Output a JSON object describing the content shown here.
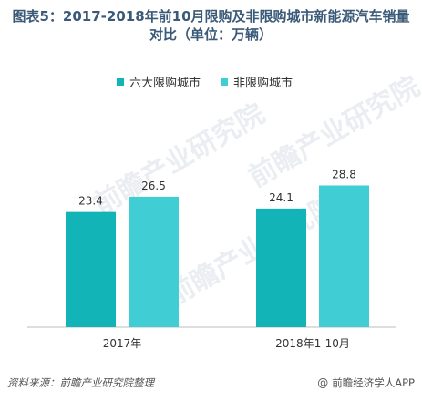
{
  "title": {
    "line1": "图表5：2017-2018年前10月限购及非限购城市新能源汽车销量",
    "line2": "对比（单位：万辆）"
  },
  "colors": {
    "series_1": "#12b4b8",
    "series_2": "#40cdd4",
    "axis": "#bdbdbd",
    "label_text": "#333333"
  },
  "watermarks": [
    "前瞻产业研究院",
    "前瞻产业研究院",
    "前瞻产业研究院"
  ],
  "footer": {
    "source": "资料来源：前瞻产业研究院整理",
    "brand_icon": "@",
    "brand_text": "前瞻经济学人APP"
  },
  "chart_data": {
    "type": "bar",
    "title": "图表5：2017-2018年前10月限购及非限购城市新能源汽车销量对比（单位：万辆）",
    "categories": [
      "2017年",
      "2018年1-10月"
    ],
    "series": [
      {
        "name": "六大限购城市",
        "values": [
          23.4,
          24.1
        ]
      },
      {
        "name": "非限购城市",
        "values": [
          26.5,
          28.8
        ]
      }
    ],
    "ylim": [
      0,
      40
    ],
    "legend_position": "top",
    "grid": false
  }
}
